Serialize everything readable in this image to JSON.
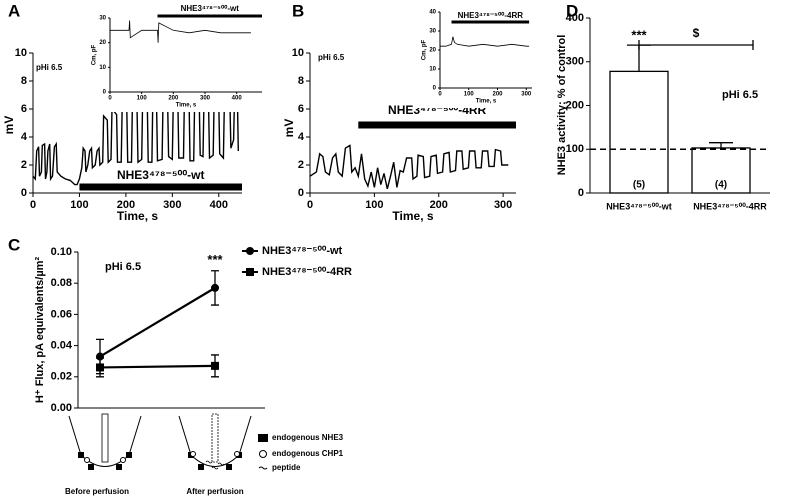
{
  "chart_data": [
    {
      "type": "trace",
      "panel": "A",
      "annotation": "pHi 6.5",
      "xlabel": "Time, s",
      "ylabel": "mV",
      "xlim": [
        0,
        450
      ],
      "ylim": [
        0,
        10
      ],
      "xticks": [
        0,
        100,
        200,
        300,
        400
      ],
      "yticks": [
        0,
        2,
        4,
        6,
        8,
        10
      ],
      "series": [
        {
          "color": "#000000",
          "x": [
            0,
            5,
            8,
            12,
            14,
            18,
            20,
            25,
            27,
            30,
            32,
            36,
            38,
            42,
            46,
            50,
            52,
            60,
            70,
            80,
            90,
            95,
            100,
            105,
            108,
            112,
            114,
            118,
            122,
            126,
            128,
            134,
            138,
            142,
            144,
            150,
            152,
            160,
            162,
            168,
            170,
            180,
            182,
            190,
            192,
            202,
            204,
            212,
            214,
            224,
            226,
            234,
            236,
            246,
            248,
            256,
            258,
            266,
            268,
            278,
            280,
            290,
            292,
            300,
            302,
            312,
            314,
            324,
            326,
            336,
            338,
            346,
            348,
            358,
            360,
            366,
            368,
            378,
            380,
            388,
            390,
            400,
            402,
            410,
            412,
            424,
            426,
            432,
            434,
            440,
            442
          ],
          "values": [
            1.2,
            1,
            3,
            3.3,
            1.2,
            1.5,
            3.4,
            3.5,
            1,
            1.5,
            3,
            3.5,
            1,
            1.2,
            3.3,
            3.5,
            1.5,
            1.2,
            1,
            0.9,
            0.6,
            0.6,
            1,
            1.8,
            3.2,
            3,
            1.5,
            2,
            3,
            3.2,
            1.8,
            2,
            3,
            3.2,
            2,
            2.2,
            5.5,
            5.2,
            2.2,
            2.4,
            6,
            5.6,
            2.2,
            2.2,
            6.2,
            6,
            2.2,
            2.2,
            6.4,
            6.2,
            2.2,
            2.4,
            6.6,
            6.4,
            2.2,
            2.2,
            6.8,
            6.6,
            2.3,
            2.4,
            6.5,
            6.2,
            2.6,
            2.4,
            6.6,
            6.4,
            2.5,
            2.5,
            6.8,
            6.6,
            2.3,
            2.3,
            6.4,
            6.3,
            2.7,
            2.6,
            6.3,
            6.2,
            2.5,
            2.7,
            6.6,
            6.4,
            2.8,
            2.5,
            6.6,
            6.5,
            3.2,
            3.8,
            7,
            6.8,
            3
          ]
        }
      ],
      "perfusion": {
        "label": "NHE3⁴⁷⁸⁻⁵⁰⁰-wt",
        "x": [
          100,
          450
        ]
      },
      "inset": {
        "xlabel": "Time, s",
        "ylabel": "Cm, pF",
        "xlim": [
          0,
          480
        ],
        "ylim": [
          0,
          30
        ],
        "xticks": [
          0,
          100,
          200,
          300,
          400
        ],
        "yticks": [
          0,
          10,
          20,
          30
        ],
        "series": [
          {
            "color": "#000000",
            "x": [
              0,
              50,
              60,
              62,
              64,
              100,
              150,
              152,
              154,
              200,
              250,
              300,
              350,
              400,
              445
            ],
            "values": [
              25,
              25,
              25,
              29,
              22,
              25,
              25,
              20,
              28,
              25,
              24,
              25,
              24,
              24,
              24
            ]
          }
        ],
        "perfusion": {
          "label": "NHE3⁴⁷⁸⁻⁵⁰⁰-wt",
          "x": [
            150,
            480
          ]
        }
      }
    },
    {
      "type": "trace",
      "panel": "B",
      "annotation": "pHi 6.5",
      "xlabel": "Time, s",
      "ylabel": "mV",
      "xlim": [
        0,
        320
      ],
      "ylim": [
        0,
        10
      ],
      "xticks": [
        0,
        100,
        200,
        300
      ],
      "yticks": [
        0,
        2,
        4,
        6,
        8,
        10
      ],
      "series": [
        {
          "color": "#000000",
          "x": [
            0,
            10,
            15,
            20,
            24,
            30,
            35,
            40,
            44,
            50,
            55,
            62,
            65,
            70,
            75,
            80,
            85,
            90,
            95,
            100,
            105,
            110,
            115,
            120,
            125,
            130,
            135,
            140,
            145,
            150,
            158,
            160,
            166,
            168,
            176,
            178,
            186,
            188,
            196,
            198,
            206,
            208,
            216,
            218,
            226,
            228,
            236,
            238,
            246,
            248,
            256,
            258,
            266,
            268,
            276,
            278,
            286,
            288,
            296,
            298,
            306,
            308
          ],
          "values": [
            1.2,
            1.5,
            2.8,
            2.6,
            1.5,
            1.3,
            2.5,
            2.8,
            1.5,
            1.2,
            3.2,
            3.4,
            1.5,
            1.8,
            1.2,
            2.8,
            1,
            0.5,
            1.5,
            0.4,
            1.8,
            0.6,
            1.4,
            0.3,
            1.2,
            2.2,
            0.4,
            1.6,
            1.5,
            2.5,
            2.5,
            1,
            1.2,
            2.7,
            2.6,
            1.1,
            1.2,
            2.6,
            2.7,
            1.4,
            1.5,
            2.8,
            2.9,
            1.5,
            1.6,
            3,
            3,
            1.7,
            1.8,
            3,
            3,
            1.8,
            1.8,
            3,
            3,
            1.9,
            1.9,
            3.1,
            3,
            2,
            2,
            2
          ]
        }
      ],
      "perfusion": {
        "label": "NHE3⁴⁷⁸⁻⁵⁰⁰-4RR",
        "x": [
          75,
          320
        ]
      },
      "inset": {
        "xlabel": "Time, s",
        "ylabel": "Cm, pF",
        "xlim": [
          0,
          320
        ],
        "ylim": [
          0,
          40
        ],
        "xticks": [
          0,
          100,
          200,
          300
        ],
        "yticks": [
          0,
          10,
          20,
          30,
          40
        ],
        "series": [
          {
            "color": "#000000",
            "x": [
              0,
              20,
              40,
              45,
              50,
              60,
              100,
              150,
              200,
              250,
              300,
              310
            ],
            "values": [
              22,
              22,
              23,
              27,
              24,
              23,
              22,
              23,
              22,
              23,
              22,
              22
            ]
          }
        ],
        "perfusion": {
          "label": "NHE3⁴⁷⁸⁻⁵⁰⁰-4RR",
          "x": [
            40,
            310
          ]
        }
      }
    },
    {
      "type": "line",
      "panel": "C",
      "annotation": "pHi 6.5",
      "ylabel": "H⁺ Flux, pA equivalents/µm²",
      "significance": "***",
      "categories": [
        "Before perfusion",
        "After perfusion"
      ],
      "ylim": [
        0,
        0.1
      ],
      "yticks": [
        {
          "value": 0,
          "label": "0.00"
        },
        {
          "value": 0.02,
          "label": "0.02"
        },
        {
          "value": 0.04,
          "label": "0.04"
        },
        {
          "value": 0.06,
          "label": "0.06"
        },
        {
          "value": 0.08,
          "label": "0.08"
        },
        {
          "value": 0.1,
          "label": "0.10"
        }
      ],
      "series": [
        {
          "name": "NHE3⁴⁷⁸⁻⁵⁰⁰-wt",
          "color": "#000000",
          "marker": "circle",
          "values": [
            0.033,
            0.077
          ],
          "errors": [
            0.011,
            0.011
          ]
        },
        {
          "name": "NHE3⁴⁷⁸⁻⁵⁰⁰-4RR",
          "color": "#000000",
          "marker": "square",
          "values": [
            0.026,
            0.027
          ],
          "errors": [
            0.006,
            0.007
          ]
        }
      ]
    },
    {
      "type": "bar",
      "panel": "D",
      "annotation": "pHi 6.5",
      "ylabel": "NHE3 activity; % of control",
      "significance": "***",
      "comparison": "$",
      "categories": [
        "NHE3⁴⁷⁸⁻⁵⁰⁰-wt",
        "NHE3⁴⁷⁸⁻⁵⁰⁰-4RR"
      ],
      "values": [
        278,
        103
      ],
      "errors": [
        60,
        12
      ],
      "n_labels": [
        "(5)",
        "(4)"
      ],
      "color": "#ffffff",
      "reference_line": 100,
      "ylim": [
        0,
        400
      ],
      "yticks": [
        0,
        100,
        200,
        300,
        400
      ]
    }
  ],
  "diagram": {
    "legend": [
      "endogenous NHE3",
      "endogenous CHP1",
      "peptide"
    ]
  }
}
